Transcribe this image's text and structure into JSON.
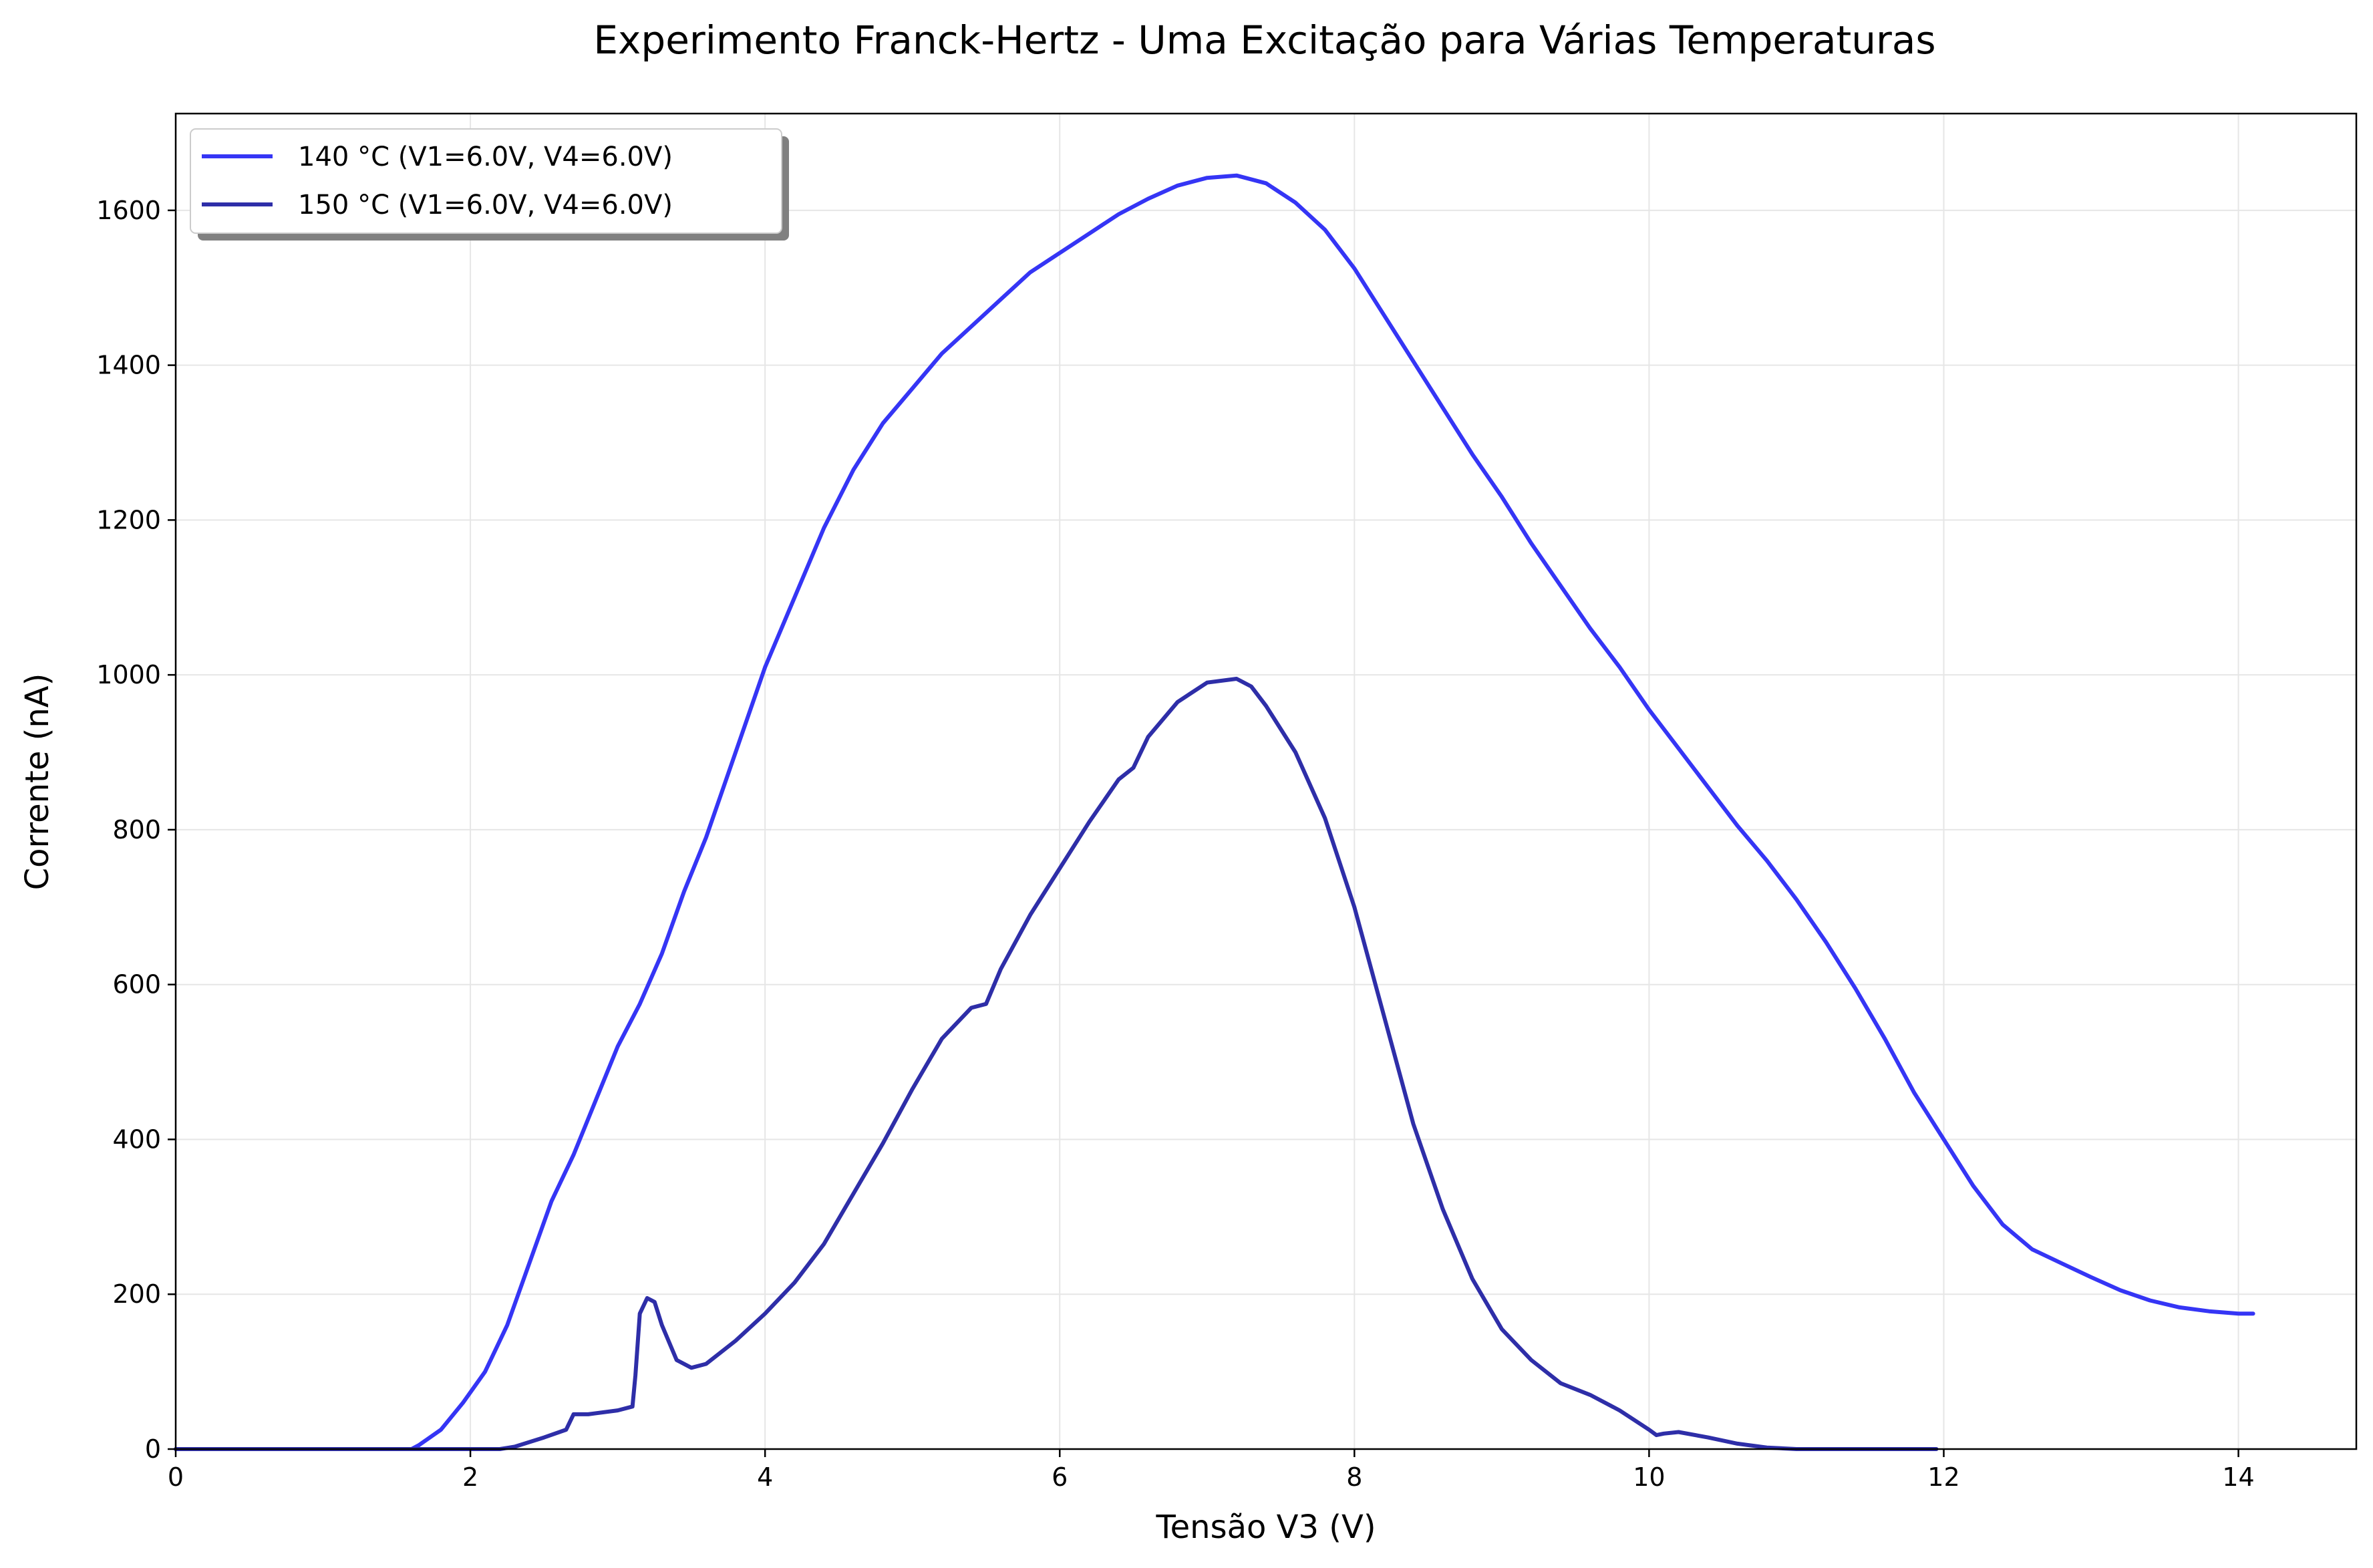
{
  "chart_data": {
    "type": "line",
    "title": "Experimento Franck-Hertz - Uma Excitação para Várias Temperaturas",
    "xlabel": "Tensão V3 (V)",
    "ylabel": "Corrente (nA)",
    "xlim": [
      0,
      14.8
    ],
    "ylim": [
      0,
      1725
    ],
    "xticks": [
      0,
      2,
      4,
      6,
      8,
      10,
      12,
      14
    ],
    "yticks": [
      0,
      200,
      400,
      600,
      800,
      1000,
      1200,
      1400,
      1600
    ],
    "grid": true,
    "legend_position": "top-left",
    "series": [
      {
        "name": "140 °C (V1=6.0V, V4=6.0V)",
        "color": "#3535f5",
        "x": [
          0,
          1.6,
          1.65,
          1.8,
          1.95,
          2.1,
          2.25,
          2.4,
          2.55,
          2.7,
          2.85,
          3.0,
          3.15,
          3.3,
          3.45,
          3.6,
          3.8,
          4.0,
          4.2,
          4.4,
          4.6,
          4.8,
          5.0,
          5.2,
          5.4,
          5.6,
          5.8,
          6.0,
          6.2,
          6.4,
          6.6,
          6.8,
          7.0,
          7.2,
          7.4,
          7.6,
          7.8,
          8.0,
          8.2,
          8.4,
          8.6,
          8.8,
          9.0,
          9.2,
          9.4,
          9.6,
          9.8,
          10.0,
          10.2,
          10.4,
          10.6,
          10.8,
          11.0,
          11.2,
          11.4,
          11.6,
          11.8,
          12.0,
          12.2,
          12.4,
          12.6,
          12.8,
          13.0,
          13.2,
          13.4,
          13.6,
          13.8,
          14.0,
          14.1
        ],
        "values": [
          0,
          0,
          5,
          25,
          60,
          100,
          160,
          240,
          320,
          380,
          450,
          520,
          575,
          640,
          720,
          790,
          900,
          1010,
          1100,
          1190,
          1265,
          1325,
          1370,
          1415,
          1450,
          1485,
          1520,
          1545,
          1570,
          1595,
          1615,
          1632,
          1642,
          1645,
          1635,
          1610,
          1575,
          1525,
          1465,
          1405,
          1345,
          1285,
          1230,
          1170,
          1115,
          1060,
          1010,
          955,
          905,
          855,
          805,
          760,
          710,
          655,
          595,
          530,
          460,
          400,
          340,
          290,
          258,
          240,
          222,
          205,
          192,
          183,
          178,
          175,
          175
        ]
      },
      {
        "name": "150 °C (V1=6.0V, V4=6.0V)",
        "color": "#2e2ea8",
        "x": [
          0,
          2.2,
          2.3,
          2.5,
          2.65,
          2.7,
          2.8,
          3.0,
          3.1,
          3.12,
          3.15,
          3.2,
          3.25,
          3.3,
          3.4,
          3.5,
          3.6,
          3.8,
          4.0,
          4.2,
          4.4,
          4.6,
          4.8,
          5.0,
          5.2,
          5.4,
          5.5,
          5.6,
          5.8,
          6.0,
          6.2,
          6.4,
          6.5,
          6.6,
          6.8,
          7.0,
          7.2,
          7.3,
          7.4,
          7.6,
          7.8,
          8.0,
          8.2,
          8.4,
          8.6,
          8.8,
          9.0,
          9.2,
          9.4,
          9.6,
          9.8,
          10.0,
          10.05,
          10.1,
          10.2,
          10.4,
          10.6,
          10.8,
          11.0,
          11.5,
          11.95
        ],
        "values": [
          0,
          0,
          3,
          15,
          25,
          45,
          45,
          50,
          55,
          95,
          175,
          195,
          190,
          160,
          115,
          105,
          110,
          140,
          175,
          215,
          265,
          330,
          395,
          465,
          530,
          570,
          575,
          620,
          690,
          750,
          810,
          865,
          880,
          920,
          965,
          990,
          995,
          985,
          960,
          900,
          815,
          700,
          560,
          420,
          310,
          220,
          155,
          115,
          85,
          70,
          50,
          25,
          18,
          20,
          22,
          15,
          7,
          2,
          0,
          0,
          0
        ]
      }
    ]
  }
}
